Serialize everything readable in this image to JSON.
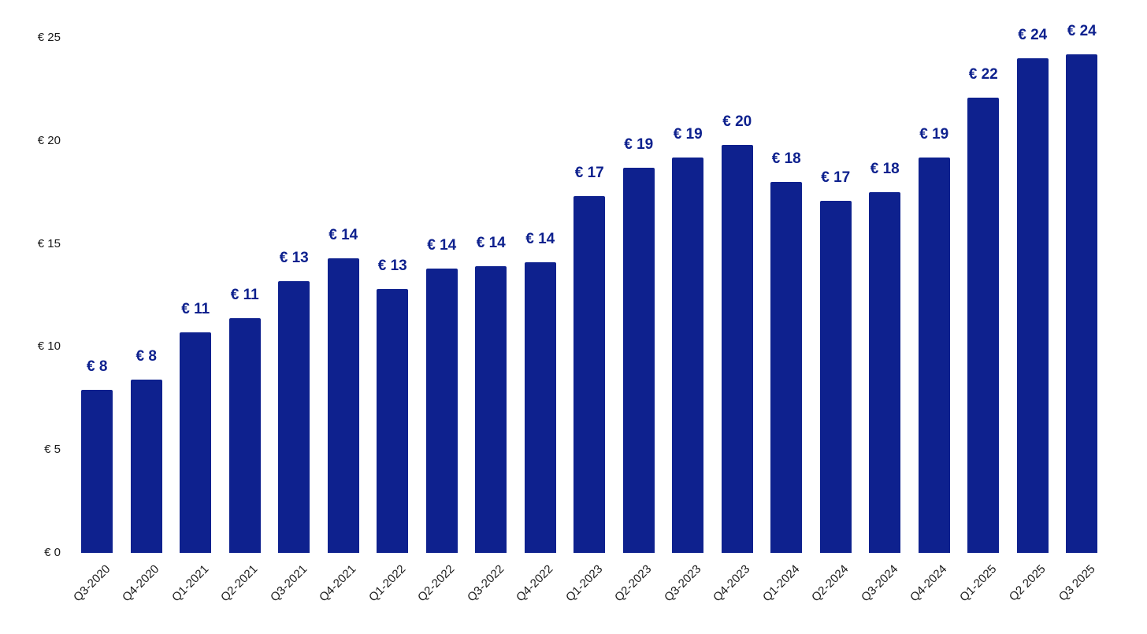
{
  "chart_data": {
    "type": "bar",
    "title": "",
    "xlabel": "",
    "ylabel": "",
    "currency": "EUR",
    "categories": [
      "Q3-2020",
      "Q4-2020",
      "Q1-2021",
      "Q2-2021",
      "Q3-2021",
      "Q4-2021",
      "Q1-2022",
      "Q2-2022",
      "Q3-2022",
      "Q4-2022",
      "Q1-2023",
      "Q2-2023",
      "Q3-2023",
      "Q4-2023",
      "Q1-2024",
      "Q2-2024",
      "Q3-2024",
      "Q4-2024",
      "Q1-2025",
      "Q2 2025",
      "Q3 2025"
    ],
    "values": [
      7.9,
      8.4,
      10.7,
      11.4,
      13.2,
      14.3,
      12.8,
      13.8,
      13.9,
      14.1,
      17.3,
      18.7,
      19.2,
      19.8,
      18.0,
      17.1,
      17.5,
      19.2,
      22.1,
      24.0,
      24.2
    ],
    "bar_labels": [
      "€ 8",
      "€ 8",
      "€ 11",
      "€ 11",
      "€ 13",
      "€ 14",
      "€ 13",
      "€ 14",
      "€ 14",
      "€ 14",
      "€ 17",
      "€ 19",
      "€ 19",
      "€ 20",
      "€ 18",
      "€ 17",
      "€ 18",
      "€ 19",
      "€ 22",
      "€ 24",
      "€ 24"
    ],
    "y_ticks": [
      {
        "value": 25,
        "label": "€ 25"
      },
      {
        "value": 20,
        "label": "€ 20"
      },
      {
        "value": 15,
        "label": "€ 15"
      },
      {
        "value": 10,
        "label": "€ 10"
      },
      {
        "value": 5,
        "label": "€ 5"
      },
      {
        "value": 0,
        "label": "€ 0"
      }
    ],
    "ylim": [
      0,
      25
    ],
    "grid": false,
    "legend_position": "none",
    "bar_color": "#0e218e",
    "bar_label_color": "#0e218e",
    "axis_text_color": "#1a1a1a",
    "background_color": "#ffffff"
  }
}
